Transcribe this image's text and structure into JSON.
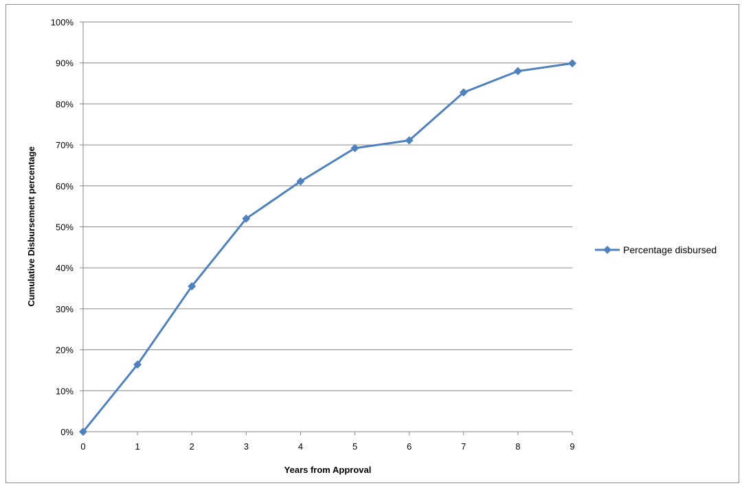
{
  "chart_data": {
    "type": "line",
    "title": "",
    "xlabel": "Years from Approval",
    "ylabel": "Cumulative Disbursement percentage",
    "x": [
      0,
      1,
      2,
      3,
      4,
      5,
      6,
      7,
      8,
      9
    ],
    "xticks": [
      "0",
      "1",
      "2",
      "3",
      "4",
      "5",
      "6",
      "7",
      "8",
      "9"
    ],
    "yticks": [
      "0%",
      "10%",
      "20%",
      "30%",
      "40%",
      "50%",
      "60%",
      "70%",
      "80%",
      "90%",
      "100%"
    ],
    "ylim": [
      0,
      100
    ],
    "xlim": [
      0,
      9
    ],
    "grid": "horizontal",
    "legend_position": "right",
    "series": [
      {
        "name": "Percentage disbursed",
        "color": "#4f81bd",
        "marker": "diamond",
        "values": [
          0,
          16.4,
          35.5,
          52.0,
          61.1,
          69.2,
          71.1,
          82.8,
          88.0,
          89.9
        ]
      }
    ]
  }
}
